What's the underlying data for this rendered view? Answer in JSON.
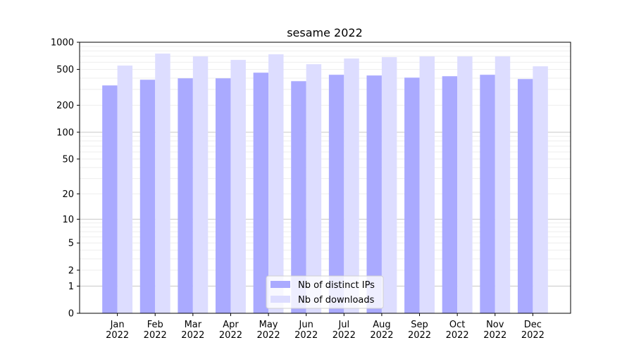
{
  "chart_data": {
    "type": "bar",
    "title": "sesame 2022",
    "xlabel": "",
    "ylabel": "",
    "yscale": "log10(1+y)",
    "ylim": [
      0,
      1000
    ],
    "grid": true,
    "legend_position": "lower center",
    "categories": [
      "Jan\n2022",
      "Feb\n2022",
      "Mar\n2022",
      "Apr\n2022",
      "May\n2022",
      "Jun\n2022",
      "Jul\n2022",
      "Aug\n2022",
      "Sep\n2022",
      "Oct\n2022",
      "Nov\n2022",
      "Dec\n2022"
    ],
    "y_ticks": [
      0,
      1,
      2,
      5,
      10,
      20,
      50,
      100,
      200,
      500,
      1000
    ],
    "series": [
      {
        "name": "Nb of distinct IPs",
        "color": "#aaaaff",
        "values": [
          332,
          384,
          398,
          398,
          460,
          370,
          436,
          428,
          405,
          420,
          436,
          391
        ]
      },
      {
        "name": "Nb of downloads",
        "color": "#ddddff",
        "values": [
          551,
          749,
          697,
          637,
          735,
          571,
          660,
          684,
          697,
          697,
          697,
          541
        ]
      }
    ]
  }
}
